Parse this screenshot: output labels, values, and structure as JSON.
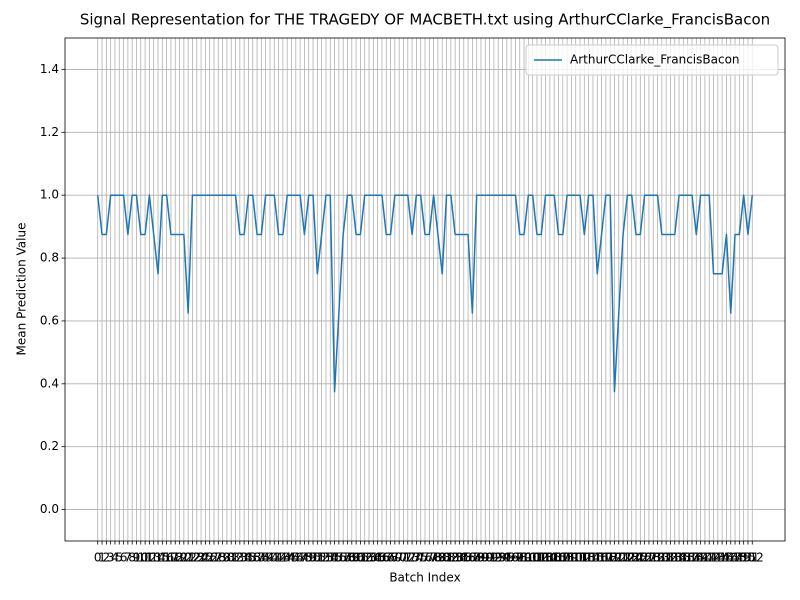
{
  "chart_data": {
    "type": "line",
    "title": "Signal Representation for THE TRAGEDY OF MACBETH.txt using ArthurCClarke_FrancisBacon",
    "xlabel": "Batch Index",
    "ylabel": "Mean Prediction Value",
    "x": [
      0,
      1,
      2,
      3,
      4,
      5,
      6,
      7,
      8,
      9,
      10,
      11,
      12,
      13,
      14,
      15,
      16,
      17,
      18,
      19,
      20,
      21,
      22,
      23,
      24,
      25,
      26,
      27,
      28,
      29,
      30,
      31,
      32,
      33,
      34,
      35,
      36,
      37,
      38,
      39,
      40,
      41,
      42,
      43,
      44,
      45,
      46,
      47,
      48,
      49,
      50,
      51,
      52,
      53,
      54,
      55,
      56,
      57,
      58,
      59,
      60,
      61,
      62,
      63,
      64,
      65,
      66,
      67,
      68,
      69,
      70,
      71,
      72,
      73,
      74,
      75,
      76,
      77,
      78,
      79,
      80,
      81,
      82,
      83,
      84,
      85,
      86,
      87,
      88,
      89,
      90,
      91,
      92,
      93,
      94,
      95,
      96,
      97,
      98,
      99,
      100,
      101,
      102,
      103,
      104,
      105,
      106,
      107,
      108,
      109,
      110,
      111,
      112,
      113,
      114,
      115,
      116,
      117,
      118,
      119,
      120,
      121,
      122,
      123,
      124,
      125,
      126,
      127,
      128,
      129,
      130,
      131,
      132,
      133,
      134,
      135,
      136,
      137,
      138,
      139,
      140,
      141,
      142,
      143,
      144,
      145,
      146,
      147,
      148,
      149,
      150,
      151,
      152
    ],
    "series": [
      {
        "name": "ArthurCClarke_FrancisBacon",
        "color": "#1f77b4",
        "values": [
          1,
          0.875,
          0.875,
          1,
          1,
          1,
          1,
          0.875,
          1,
          1,
          0.875,
          0.875,
          1,
          0.875,
          0.75,
          1,
          1,
          0.875,
          0.875,
          0.875,
          0.875,
          0.625,
          1,
          1,
          1,
          1,
          1,
          1,
          1,
          1,
          1,
          1,
          1,
          0.875,
          0.875,
          1,
          1,
          0.875,
          0.875,
          1,
          1,
          1,
          0.875,
          0.875,
          1,
          1,
          1,
          1,
          0.875,
          1,
          1,
          0.75,
          0.875,
          1,
          1,
          0.375,
          0.625,
          0.875,
          1,
          1,
          0.875,
          0.875,
          1,
          1,
          1,
          1,
          1,
          0.875,
          0.875,
          1,
          1,
          1,
          1,
          0.875,
          1,
          1,
          0.875,
          0.875,
          1,
          0.875,
          0.75,
          1,
          1,
          0.875,
          0.875,
          0.875,
          0.875,
          0.625,
          1,
          1,
          1,
          1,
          1,
          1,
          1,
          1,
          1,
          1,
          0.875,
          0.875,
          1,
          1,
          0.875,
          0.875,
          1,
          1,
          1,
          0.875,
          0.875,
          1,
          1,
          1,
          1,
          0.875,
          1,
          1,
          0.75,
          0.875,
          1,
          1,
          0.375,
          0.625,
          0.875,
          1,
          1,
          0.875,
          0.875,
          1,
          1,
          1,
          1,
          0.875,
          0.875,
          0.875,
          0.875,
          1,
          1,
          1,
          1,
          0.875,
          1,
          1,
          1,
          0.75,
          0.75,
          0.75,
          0.875,
          0.625,
          0.875,
          0.875,
          1,
          0.875,
          1
        ]
      }
    ],
    "xlim": [
      -7.6,
      159.6
    ],
    "xticks": [
      0,
      1,
      2,
      3,
      4,
      5,
      6,
      7,
      8,
      9,
      10,
      11,
      12,
      13,
      14,
      15,
      16,
      17,
      18,
      19,
      20,
      21,
      22,
      23,
      24,
      25,
      26,
      27,
      28,
      29,
      30,
      31,
      32,
      33,
      34,
      35,
      36,
      37,
      38,
      39,
      40,
      41,
      42,
      43,
      44,
      45,
      46,
      47,
      48,
      49,
      50,
      51,
      52,
      53,
      54,
      55,
      56,
      57,
      58,
      59,
      60,
      61,
      62,
      63,
      64,
      65,
      66,
      67,
      68,
      69,
      70,
      71,
      72,
      73,
      74,
      75,
      76,
      77,
      78,
      79,
      80,
      81,
      82,
      83,
      84,
      85,
      86,
      87,
      88,
      89,
      90,
      91,
      92,
      93,
      94,
      95,
      96,
      97,
      98,
      99,
      100,
      101,
      102,
      103,
      104,
      105,
      106,
      107,
      108,
      109,
      110,
      111,
      112,
      113,
      114,
      115,
      116,
      117,
      118,
      119,
      120,
      121,
      122,
      123,
      124,
      125,
      126,
      127,
      128,
      129,
      130,
      131,
      132,
      133,
      134,
      135,
      136,
      137,
      138,
      139,
      140,
      141,
      142,
      143,
      144,
      145,
      146,
      147,
      148,
      149,
      150,
      151,
      152
    ],
    "ylim": [
      -0.1,
      1.5
    ],
    "yticks": [
      {
        "value": 0,
        "label": "0.0"
      },
      0.2,
      0.4,
      0.6,
      0.8,
      {
        "value": 1,
        "label": "1.0"
      },
      1.2,
      1.4
    ],
    "grid": true,
    "legend": "upper right"
  }
}
